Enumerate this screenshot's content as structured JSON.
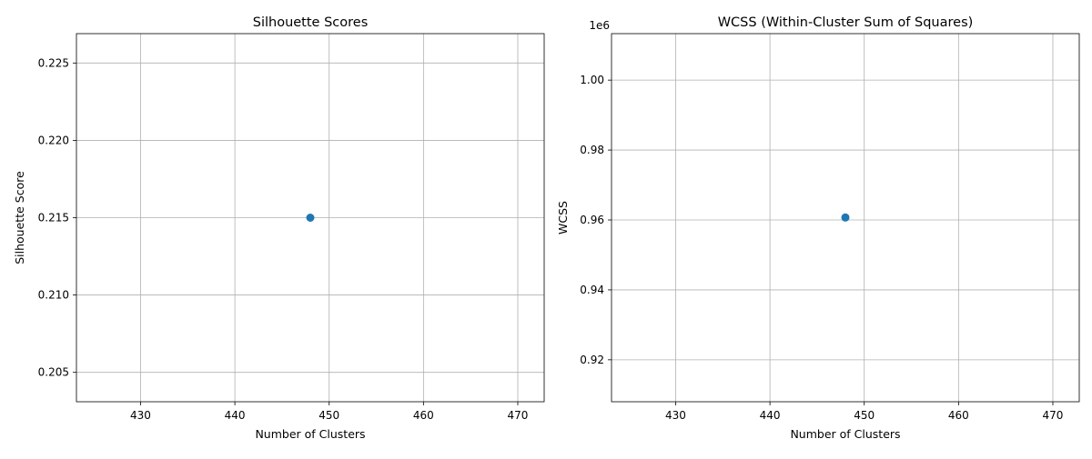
{
  "figure": {
    "background": "#ffffff"
  },
  "chart_data": [
    {
      "type": "scatter",
      "title": "Silhouette Scores",
      "xlabel": "Number of Clusters",
      "ylabel": "Silhouette Score",
      "xlim": [
        423.2,
        472.8
      ],
      "ylim": [
        0.2031,
        0.2269
      ],
      "x_ticks": [
        430,
        440,
        450,
        460,
        470
      ],
      "y_ticks": [
        0.205,
        0.21,
        0.215,
        0.22,
        0.225
      ],
      "x_tick_labels": [
        "430",
        "440",
        "450",
        "460",
        "470"
      ],
      "y_tick_labels": [
        "0.205",
        "0.210",
        "0.215",
        "0.220",
        "0.225"
      ],
      "offset_text": "",
      "grid": true,
      "series": [
        {
          "x": [
            448
          ],
          "y": [
            0.215
          ],
          "color": "#1f77b4",
          "marker": "o",
          "line": true
        }
      ]
    },
    {
      "type": "scatter",
      "title": "WCSS (Within-Cluster Sum of Squares)",
      "xlabel": "Number of Clusters",
      "ylabel": "WCSS",
      "xlim": [
        423.2,
        472.8
      ],
      "ylim": [
        908000,
        1013300
      ],
      "x_ticks": [
        430,
        440,
        450,
        460,
        470
      ],
      "y_ticks": [
        920000,
        940000,
        960000,
        980000,
        1000000
      ],
      "x_tick_labels": [
        "430",
        "440",
        "450",
        "460",
        "470"
      ],
      "y_tick_labels": [
        "0.92",
        "0.94",
        "0.96",
        "0.98",
        "1.00"
      ],
      "offset_text": "1e6",
      "grid": true,
      "series": [
        {
          "x": [
            448
          ],
          "y": [
            960700
          ],
          "color": "#1f77b4",
          "marker": "o",
          "line": true
        }
      ]
    }
  ]
}
